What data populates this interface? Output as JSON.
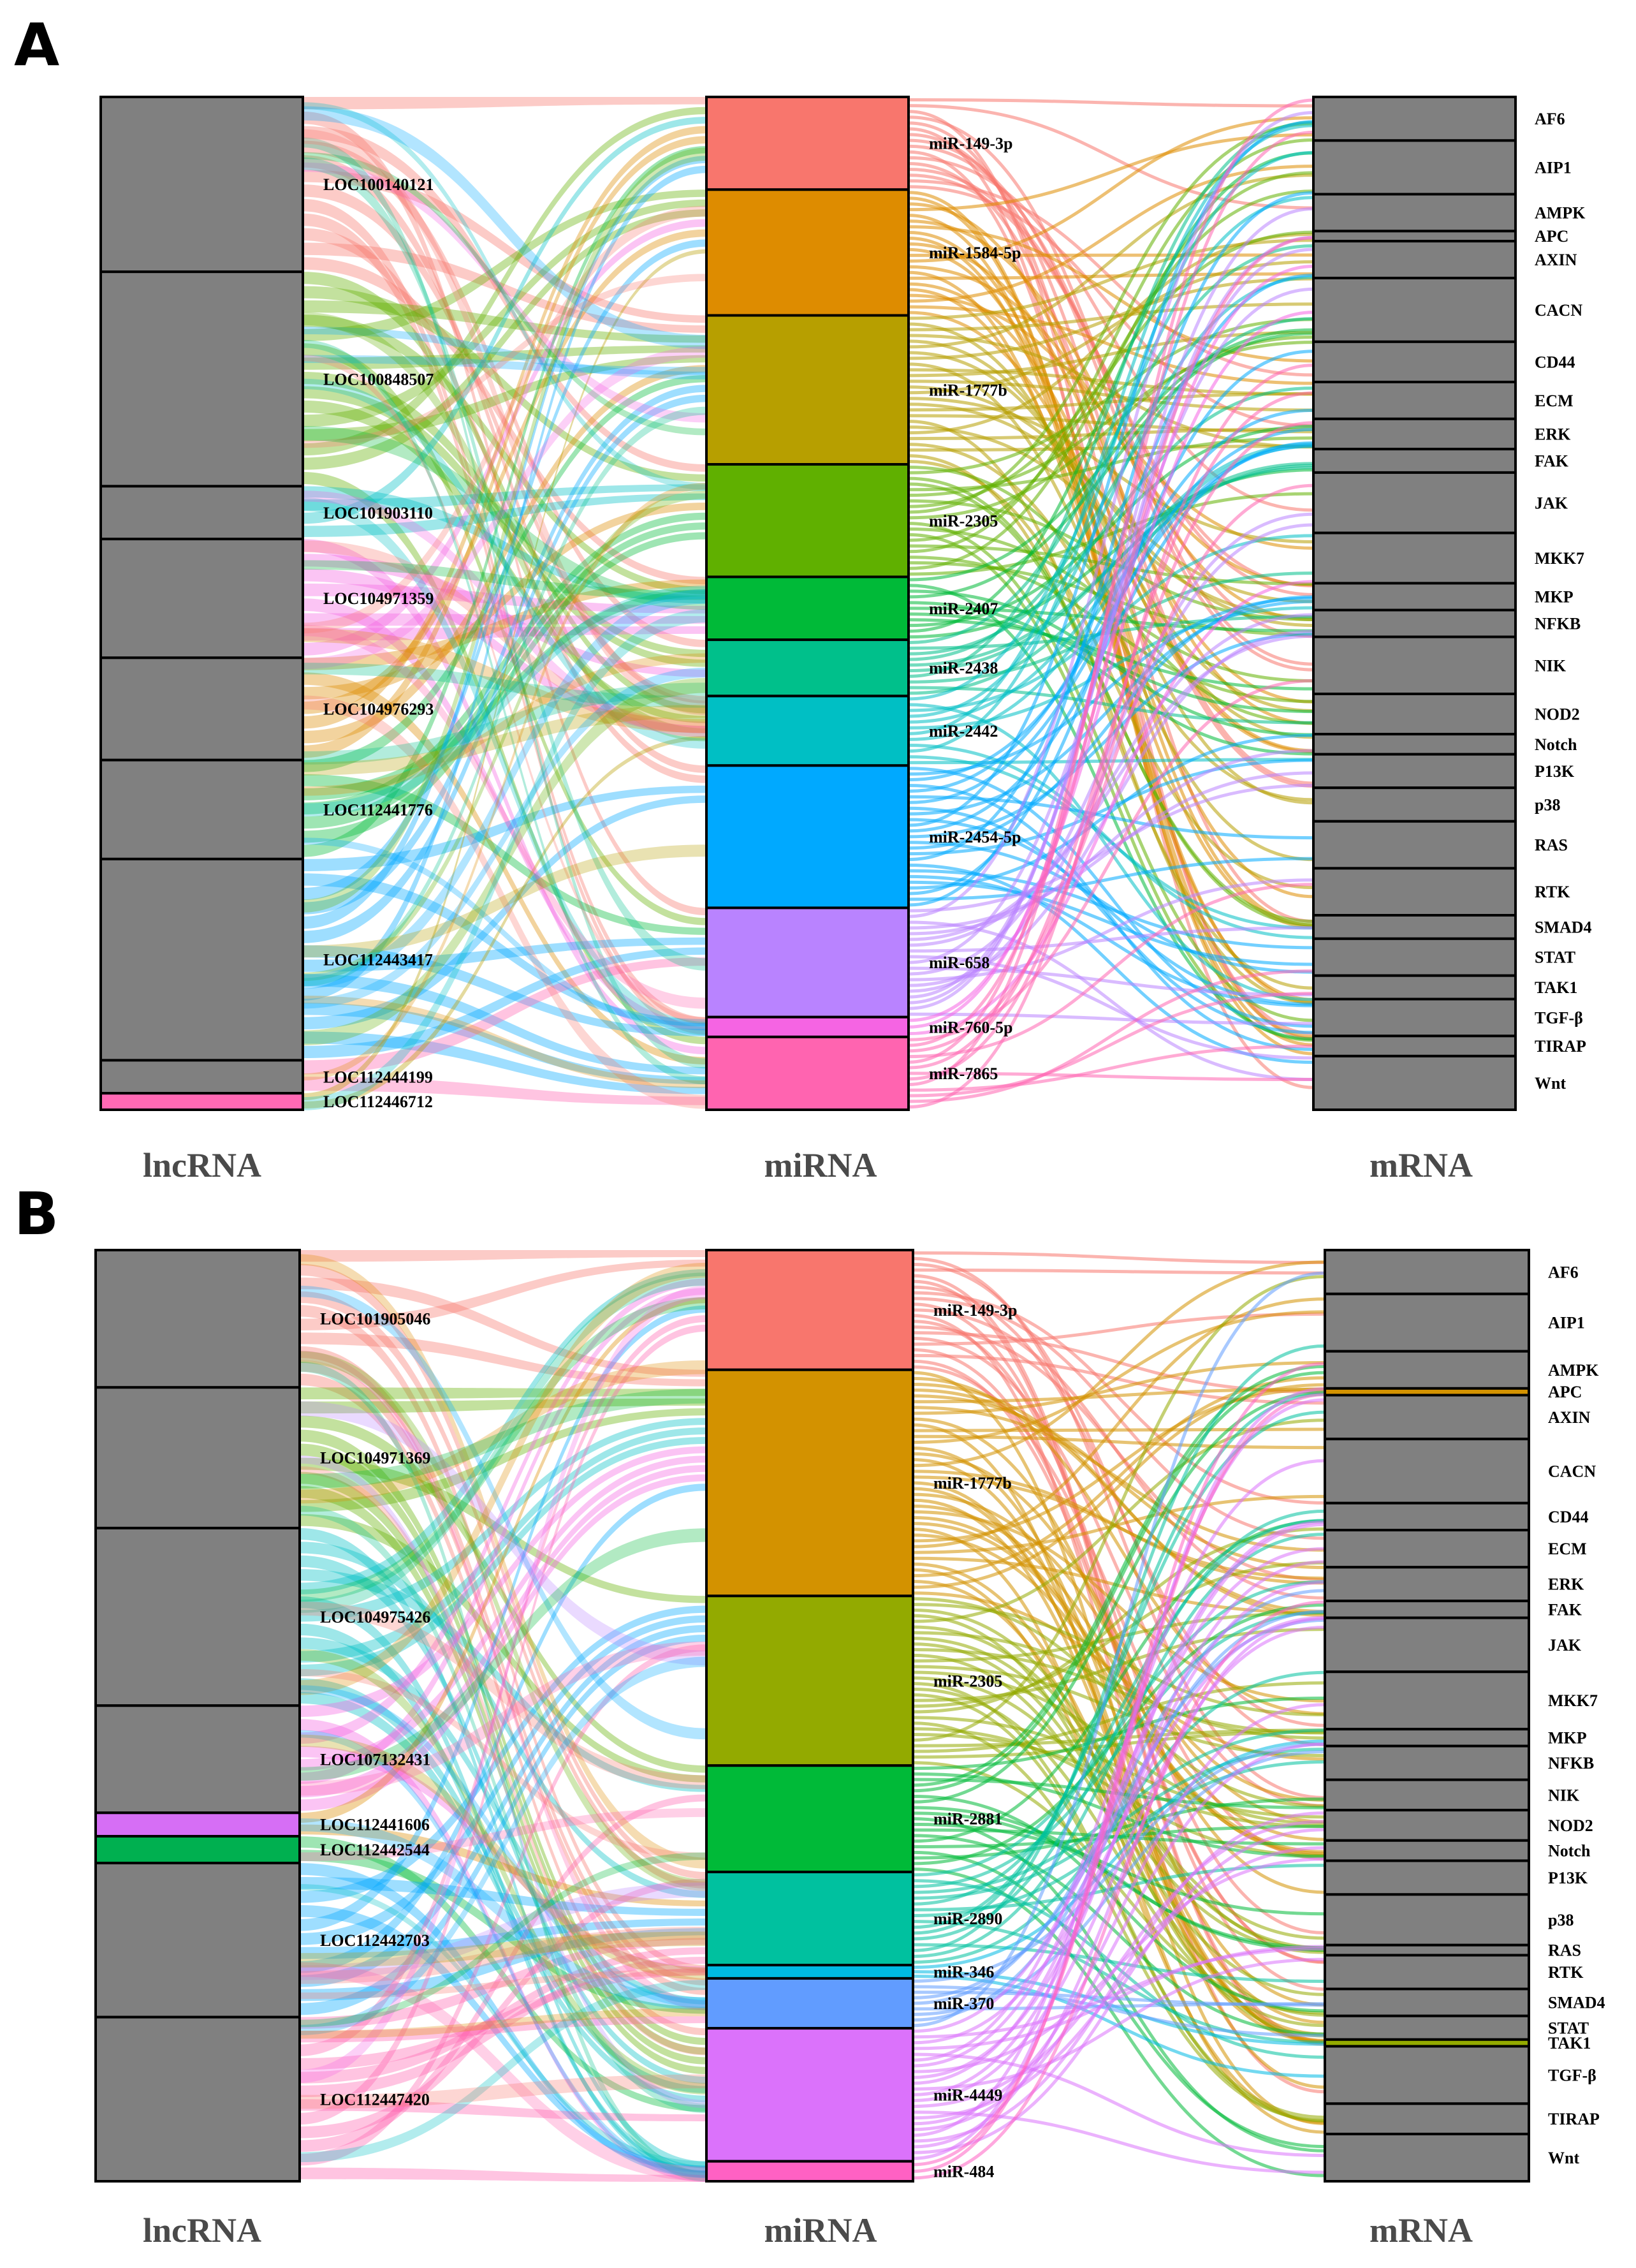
{
  "panels": [
    {
      "letter": "A",
      "axis_titles": [
        "lncRNA",
        "miRNA",
        "mRNA"
      ],
      "lncRNA": [
        {
          "label": "LOC100140121",
          "weight": 53,
          "color": "#808080"
        },
        {
          "label": "LOC100848507",
          "weight": 65,
          "color": "#808080"
        },
        {
          "label": "LOC101903110",
          "weight": 16,
          "color": "#808080"
        },
        {
          "label": "LOC104971359",
          "weight": 36,
          "color": "#808080"
        },
        {
          "label": "LOC104976293",
          "weight": 31,
          "color": "#808080"
        },
        {
          "label": "LOC112441776",
          "weight": 30,
          "color": "#808080"
        },
        {
          "label": "LOC112443417",
          "weight": 61,
          "color": "#808080"
        },
        {
          "label": "LOC112444199",
          "weight": 10,
          "color": "#808080"
        },
        {
          "label": "LOC112446712",
          "weight": 5,
          "color": "#ff69b4"
        }
      ],
      "miRNA": [
        {
          "label": "miR-149-3p",
          "weight": 28,
          "color": "#f8766d"
        },
        {
          "label": "miR-1584-5p",
          "weight": 38,
          "color": "#de8c00"
        },
        {
          "label": "miR-1777b",
          "weight": 45,
          "color": "#b79f00"
        },
        {
          "label": "miR-2305",
          "weight": 34,
          "color": "#60b000"
        },
        {
          "label": "miR-2407",
          "weight": 19,
          "color": "#00ba38"
        },
        {
          "label": "miR-2438",
          "weight": 17,
          "color": "#00c08b"
        },
        {
          "label": "miR-2442",
          "weight": 21,
          "color": "#00bfc4"
        },
        {
          "label": "miR-2454-5p",
          "weight": 43,
          "color": "#00a9ff"
        },
        {
          "label": "miR-658",
          "weight": 33,
          "color": "#b983ff"
        },
        {
          "label": "miR-760-5p",
          "weight": 6,
          "color": "#f564e3"
        },
        {
          "label": "miR-7865",
          "weight": 22,
          "color": "#ff64b0"
        }
      ],
      "mRNA": [
        {
          "label": "AF6",
          "weight": 13,
          "color": "#808080"
        },
        {
          "label": "AIP1",
          "weight": 16,
          "color": "#808080"
        },
        {
          "label": "AMPK",
          "weight": 11,
          "color": "#808080"
        },
        {
          "label": "APC",
          "weight": 3,
          "color": "#808080"
        },
        {
          "label": "AXIN",
          "weight": 11,
          "color": "#808080"
        },
        {
          "label": "CACN",
          "weight": 19,
          "color": "#808080"
        },
        {
          "label": "CD44",
          "weight": 12,
          "color": "#808080"
        },
        {
          "label": "ECM",
          "weight": 11,
          "color": "#808080"
        },
        {
          "label": "ERK",
          "weight": 9,
          "color": "#808080"
        },
        {
          "label": "FAK",
          "weight": 7,
          "color": "#808080"
        },
        {
          "label": "JAK",
          "weight": 18,
          "color": "#808080"
        },
        {
          "label": "MKK7",
          "weight": 15,
          "color": "#808080"
        },
        {
          "label": "MKP",
          "weight": 8,
          "color": "#808080"
        },
        {
          "label": "NFKB",
          "weight": 8,
          "color": "#808080"
        },
        {
          "label": "NIK",
          "weight": 17,
          "color": "#808080"
        },
        {
          "label": "NOD2",
          "weight": 12,
          "color": "#808080"
        },
        {
          "label": "Notch",
          "weight": 6,
          "color": "#808080"
        },
        {
          "label": "P13K",
          "weight": 10,
          "color": "#808080"
        },
        {
          "label": "p38",
          "weight": 10,
          "color": "#808080"
        },
        {
          "label": "RAS",
          "weight": 14,
          "color": "#808080"
        },
        {
          "label": "RTK",
          "weight": 14,
          "color": "#808080"
        },
        {
          "label": "SMAD4",
          "weight": 7,
          "color": "#808080"
        },
        {
          "label": "STAT",
          "weight": 11,
          "color": "#808080"
        },
        {
          "label": "TAK1",
          "weight": 7,
          "color": "#808080"
        },
        {
          "label": "TGF-β",
          "weight": 11,
          "color": "#808080"
        },
        {
          "label": "TIRAP",
          "weight": 6,
          "color": "#808080"
        },
        {
          "label": "Wnt",
          "weight": 16,
          "color": "#808080"
        }
      ]
    },
    {
      "letter": "B",
      "axis_titles": [
        "lncRNA",
        "miRNA",
        "mRNA"
      ],
      "lncRNA": [
        {
          "label": "LOC101905046",
          "weight": 41,
          "color": "#808080"
        },
        {
          "label": "LOC104971369",
          "weight": 42,
          "color": "#808080"
        },
        {
          "label": "LOC104975426",
          "weight": 53,
          "color": "#808080"
        },
        {
          "label": "LOC107132431",
          "weight": 32,
          "color": "#808080"
        },
        {
          "label": "LOC112441606",
          "weight": 7,
          "color": "#d66ef5"
        },
        {
          "label": "LOC112442544",
          "weight": 8,
          "color": "#00b050"
        },
        {
          "label": "LOC112442703",
          "weight": 46,
          "color": "#808080"
        },
        {
          "label": "LOC112447420",
          "weight": 49,
          "color": "#808080"
        }
      ],
      "miRNA": [
        {
          "label": "miR-149-3p",
          "weight": 36,
          "color": "#f8766d"
        },
        {
          "label": "miR-1777b",
          "weight": 68,
          "color": "#d39200"
        },
        {
          "label": "miR-2305",
          "weight": 51,
          "color": "#93aa00"
        },
        {
          "label": "miR-2881",
          "weight": 32,
          "color": "#00ba38"
        },
        {
          "label": "miR-2890",
          "weight": 28,
          "color": "#00c19f"
        },
        {
          "label": "miR-346",
          "weight": 4,
          "color": "#00b9e3"
        },
        {
          "label": "miR-370",
          "weight": 15,
          "color": "#619cff"
        },
        {
          "label": "miR-4449",
          "weight": 40,
          "color": "#db72fb"
        },
        {
          "label": "miR-484",
          "weight": 6,
          "color": "#ff61c3"
        }
      ],
      "mRNA": [
        {
          "label": "AF6",
          "weight": 13,
          "color": "#808080"
        },
        {
          "label": "AIP1",
          "weight": 17,
          "color": "#808080"
        },
        {
          "label": "AMPK",
          "weight": 11,
          "color": "#808080"
        },
        {
          "label": "APC",
          "weight": 2,
          "color": "#d39200"
        },
        {
          "label": "AXIN",
          "weight": 13,
          "color": "#808080"
        },
        {
          "label": "CACN",
          "weight": 19,
          "color": "#808080"
        },
        {
          "label": "CD44",
          "weight": 8,
          "color": "#808080"
        },
        {
          "label": "ECM",
          "weight": 11,
          "color": "#808080"
        },
        {
          "label": "ERK",
          "weight": 10,
          "color": "#808080"
        },
        {
          "label": "FAK",
          "weight": 5,
          "color": "#808080"
        },
        {
          "label": "JAK",
          "weight": 16,
          "color": "#808080"
        },
        {
          "label": "MKK7",
          "weight": 17,
          "color": "#808080"
        },
        {
          "label": "MKP",
          "weight": 5,
          "color": "#808080"
        },
        {
          "label": "NFKB",
          "weight": 10,
          "color": "#808080"
        },
        {
          "label": "NIK",
          "weight": 9,
          "color": "#808080"
        },
        {
          "label": "NOD2",
          "weight": 9,
          "color": "#808080"
        },
        {
          "label": "Notch",
          "weight": 6,
          "color": "#808080"
        },
        {
          "label": "P13K",
          "weight": 10,
          "color": "#808080"
        },
        {
          "label": "p38",
          "weight": 15,
          "color": "#808080"
        },
        {
          "label": "RAS",
          "weight": 3,
          "color": "#808080"
        },
        {
          "label": "RTK",
          "weight": 10,
          "color": "#808080"
        },
        {
          "label": "SMAD4",
          "weight": 8,
          "color": "#808080"
        },
        {
          "label": "STAT",
          "weight": 7,
          "color": "#808080"
        },
        {
          "label": "TAK1",
          "weight": 2,
          "color": "#93aa00"
        },
        {
          "label": "TGF-β",
          "weight": 17,
          "color": "#808080"
        },
        {
          "label": "TIRAP",
          "weight": 9,
          "color": "#808080"
        },
        {
          "label": "Wnt",
          "weight": 14,
          "color": "#808080"
        }
      ]
    }
  ]
}
